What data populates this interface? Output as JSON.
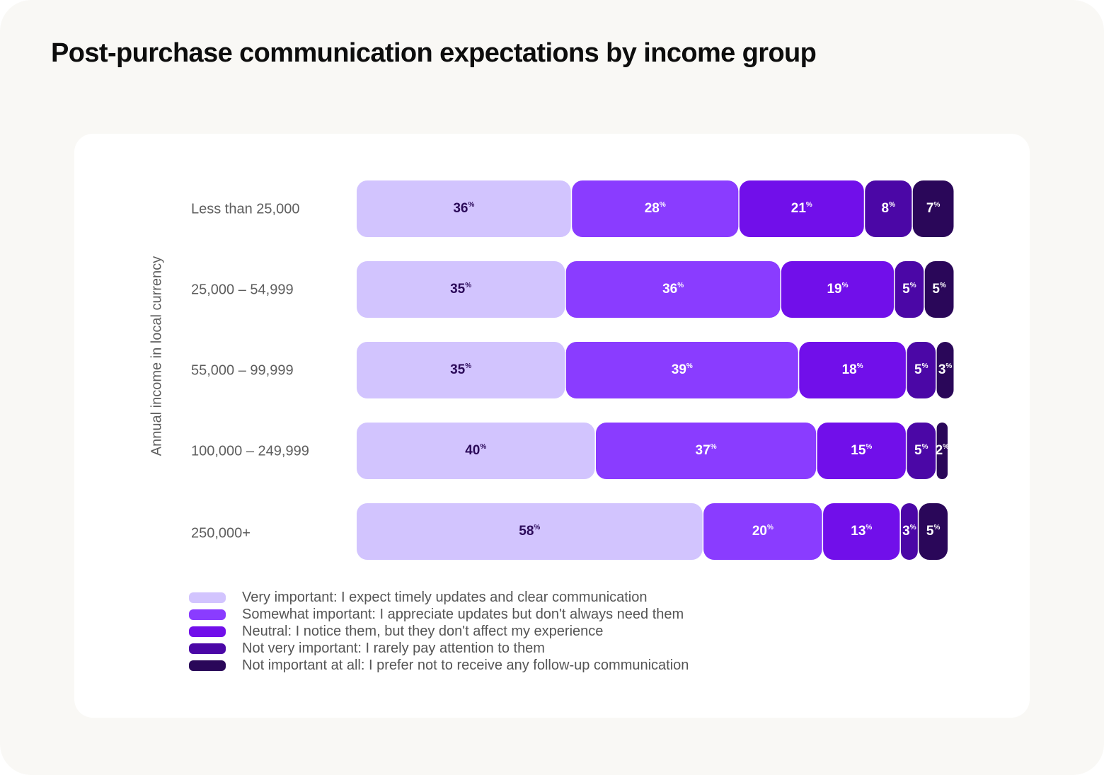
{
  "title": "Post-purchase communication expectations by income group",
  "chart_data": {
    "type": "bar",
    "orientation": "horizontal",
    "stacked": true,
    "title": "Post-purchase communication expectations by income group",
    "ylabel": "Annual income in local currency",
    "xlabel": "",
    "value_suffix": "%",
    "categories": [
      "Less than 25,000",
      "25,000 – 54,999",
      "55,000 – 99,999",
      "100,000 – 249,999",
      "250,000+"
    ],
    "series": [
      {
        "name": "Very important: I expect timely updates and clear communication",
        "color": "#d2c4fe",
        "label_color": "#2b0a59",
        "values": [
          36,
          35,
          35,
          40,
          58
        ]
      },
      {
        "name": "Somewhat important: I appreciate updates but don't always need them",
        "color": "#8a3cff",
        "label_color": "#ffffff",
        "values": [
          28,
          36,
          39,
          37,
          20
        ]
      },
      {
        "name": "Neutral: I notice them, but they don't affect my experience",
        "color": "#710fea",
        "label_color": "#ffffff",
        "values": [
          21,
          19,
          18,
          15,
          13
        ]
      },
      {
        "name": "Not very important: I rarely pay attention to them",
        "color": "#4b07a6",
        "label_color": "#ffffff",
        "values": [
          8,
          5,
          5,
          5,
          3
        ]
      },
      {
        "name": "Not important at all: I prefer not to receive any follow-up communication",
        "color": "#2a0759",
        "label_color": "#ffffff",
        "values": [
          7,
          5,
          3,
          2,
          5
        ]
      }
    ],
    "legend_position": "bottom-left",
    "grid": false
  }
}
